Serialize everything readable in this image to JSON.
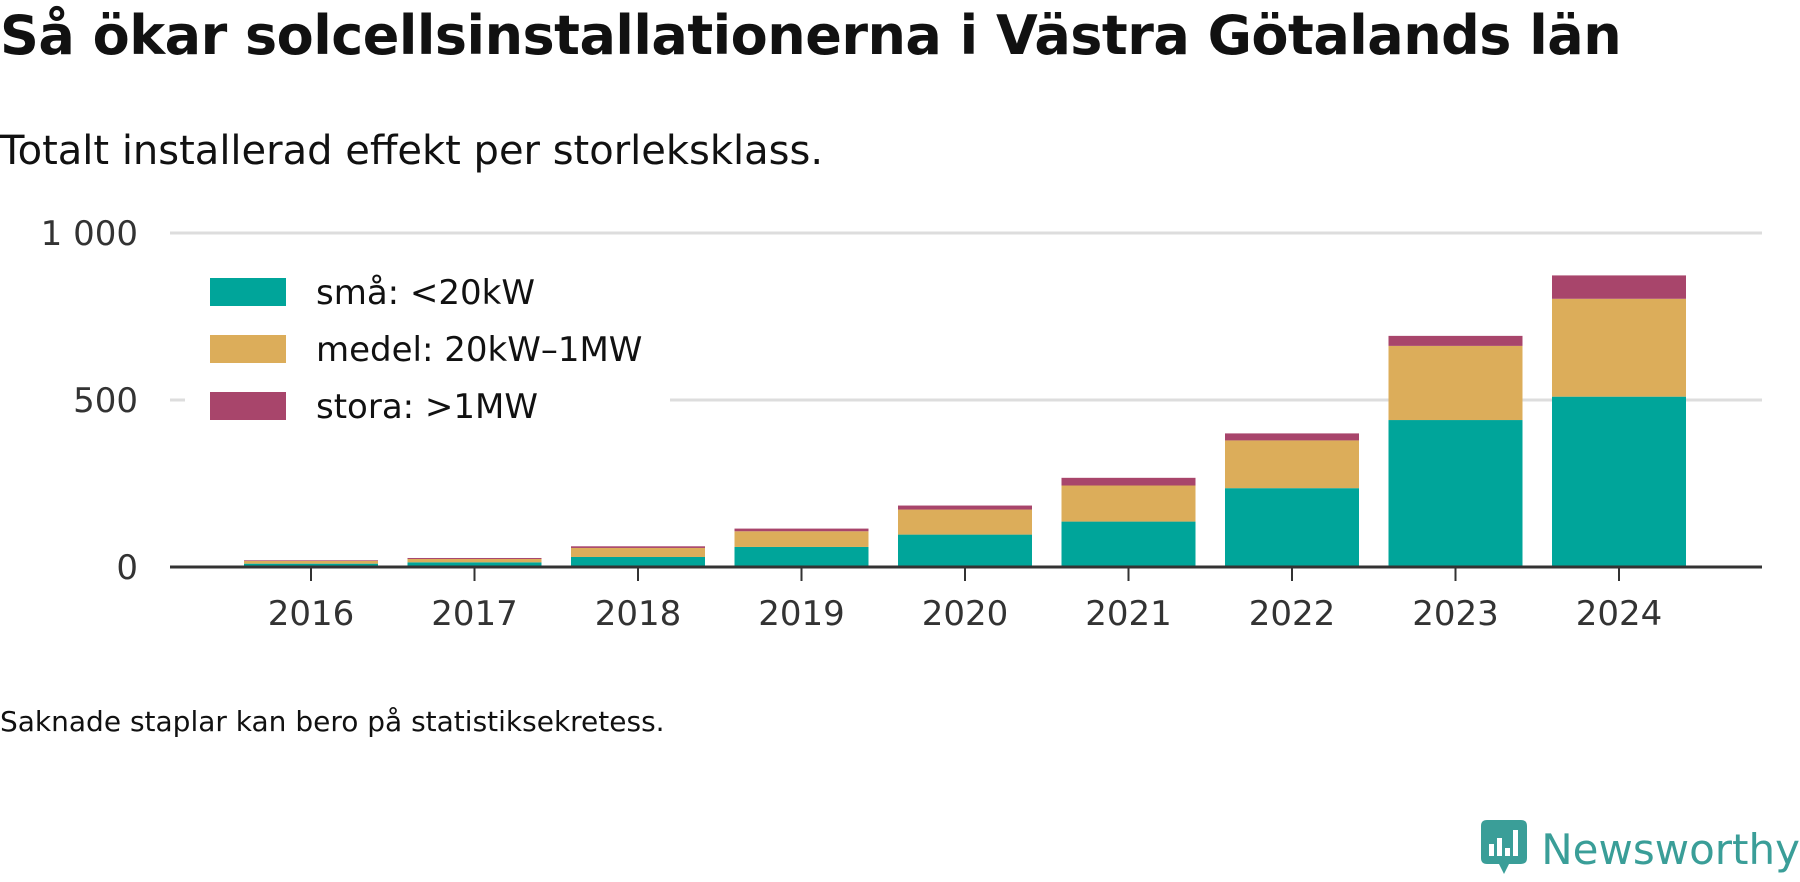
{
  "chart_data": {
    "type": "bar",
    "stacked": true,
    "title": "Så ökar solcellsinstallationerna i Västra Götalands län",
    "subtitle": "Totalt installerad effekt per storleksklass.",
    "xlabel": "",
    "ylabel": "",
    "ylim": [
      0,
      1000
    ],
    "yticks": [
      0,
      500,
      1000
    ],
    "ytick_labels": [
      "0",
      "500",
      "1 000"
    ],
    "grid": true,
    "legend_position": "top-left",
    "categories": [
      "2016",
      "2017",
      "2018",
      "2019",
      "2020",
      "2021",
      "2022",
      "2023",
      "2024"
    ],
    "series": [
      {
        "name": "små: <20kW",
        "color": "#00a59a",
        "values": [
          10,
          14,
          30,
          60,
          97,
          136,
          236,
          440,
          510
        ]
      },
      {
        "name": "medel: 20kW–1MW",
        "color": "#dcad5a",
        "values": [
          8,
          10,
          27,
          47,
          75,
          108,
          143,
          222,
          293
        ]
      },
      {
        "name": "stora: >1MW",
        "color": "#a8456b",
        "values": [
          2,
          3,
          5,
          8,
          12,
          23,
          21,
          30,
          70
        ]
      }
    ]
  },
  "footnote": "Saknade staplar kan bero på statistiksekretess.",
  "brand": {
    "name": "Newsworthy",
    "logo_icon": "newsworthy-chart-icon",
    "color": "#3a9e98"
  }
}
